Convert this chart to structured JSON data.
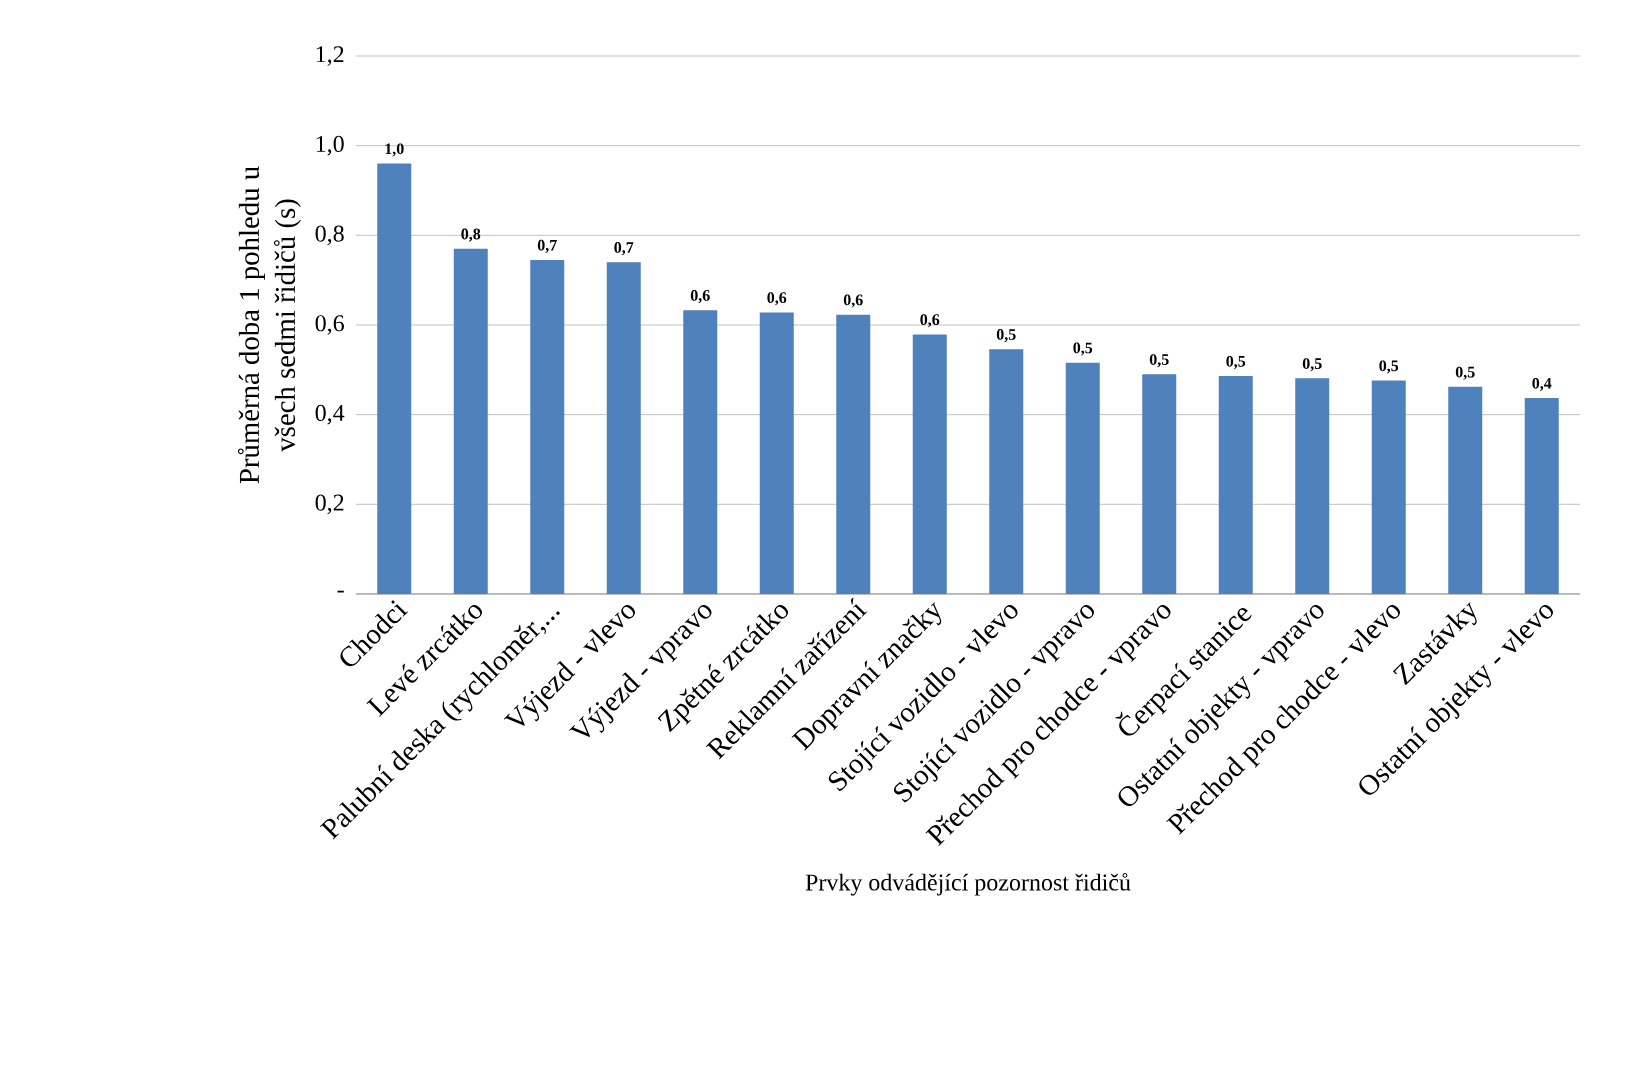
{
  "chart_data": {
    "type": "bar",
    "xlabel": "Prvky odvádějící pozornost řidičů",
    "ylabel": "Průměrná doba 1 pohledu u všech sedmi řidičů (s)",
    "categories": [
      "Chodci",
      "Levé zrcátko",
      "Palubní deska (rychloměr,...",
      "Výjezd - vlevo",
      "Výjezd - vpravo",
      "Zpětné zrcátko",
      "Reklamní zařízení",
      "Dopravní značky",
      "Stojící vozidlo - vlevo",
      "Stojící vozidlo - vpravo",
      "Přechod pro chodce - vpravo",
      "Čerpací stanice",
      "Ostatní objekty - vpravo",
      "Přechod pro chodce - vlevo",
      "Zastávky",
      "Ostatní objekty - vlevo"
    ],
    "values": [
      0.96,
      0.77,
      0.745,
      0.74,
      0.633,
      0.628,
      0.623,
      0.579,
      0.546,
      0.516,
      0.49,
      0.486,
      0.481,
      0.476,
      0.462,
      0.437
    ],
    "value_labels": [
      "1,0",
      "0,8",
      "0,7",
      "0,7",
      "0,6",
      "0,6",
      "0,6",
      "0,6",
      "0,5",
      "0,5",
      "0,5",
      "0,5",
      "0,5",
      "0,5",
      "0,5",
      "0,4"
    ],
    "color": "#4f81bd",
    "ylim": [
      0,
      1.2
    ],
    "yticks": [
      {
        "value": 0,
        "label": "-"
      },
      {
        "value": 0.2,
        "label": "0,2"
      },
      {
        "value": 0.4,
        "label": "0,4"
      },
      {
        "value": 0.6,
        "label": "0,6"
      },
      {
        "value": 0.8,
        "label": "0,8"
      },
      {
        "value": 1.0,
        "label": "1,0"
      },
      {
        "value": 1.2,
        "label": "1,2"
      }
    ],
    "grid": "y"
  }
}
